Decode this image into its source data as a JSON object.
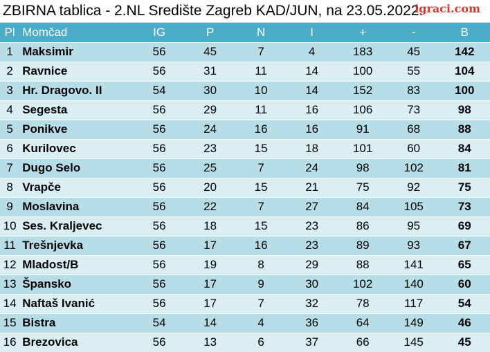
{
  "header": {
    "title": "ZBIRNA tablica - 2.NL Središte Zagreb KAD/JUN, na 23.05.2022.",
    "logo": "igraci.com"
  },
  "table": {
    "columns": [
      "Pl",
      "Momčad",
      "IG",
      "P",
      "N",
      "I",
      "+",
      "-",
      "B"
    ],
    "rows": [
      [
        "1",
        "Maksimir",
        "56",
        "45",
        "7",
        "4",
        "183",
        "45",
        "142"
      ],
      [
        "2",
        "Ravnice",
        "56",
        "31",
        "11",
        "14",
        "100",
        "55",
        "104"
      ],
      [
        "3",
        "Hr. Dragovo. II",
        "54",
        "30",
        "10",
        "14",
        "152",
        "83",
        "100"
      ],
      [
        "4",
        "Segesta",
        "56",
        "29",
        "11",
        "16",
        "106",
        "73",
        "98"
      ],
      [
        "5",
        "Ponikve",
        "56",
        "24",
        "16",
        "16",
        "91",
        "68",
        "88"
      ],
      [
        "6",
        "Kurilovec",
        "56",
        "23",
        "15",
        "18",
        "101",
        "60",
        "84"
      ],
      [
        "7",
        "Dugo Selo",
        "56",
        "25",
        "7",
        "24",
        "98",
        "102",
        "81"
      ],
      [
        "8",
        "Vrapče",
        "56",
        "20",
        "15",
        "21",
        "75",
        "92",
        "75"
      ],
      [
        "9",
        "Moslavina",
        "56",
        "22",
        "7",
        "27",
        "84",
        "105",
        "73"
      ],
      [
        "10",
        "Ses. Kraljevec",
        "56",
        "18",
        "15",
        "23",
        "86",
        "95",
        "69"
      ],
      [
        "11",
        "Trešnjevka",
        "56",
        "17",
        "16",
        "23",
        "89",
        "93",
        "67"
      ],
      [
        "12",
        "Mladost/B",
        "56",
        "19",
        "8",
        "29",
        "88",
        "141",
        "65"
      ],
      [
        "13",
        "Špansko",
        "56",
        "17",
        "9",
        "30",
        "102",
        "140",
        "60"
      ],
      [
        "14",
        "Naftaš Ivanić",
        "56",
        "17",
        "7",
        "32",
        "78",
        "117",
        "54"
      ],
      [
        "15",
        "Bistra",
        "54",
        "14",
        "4",
        "36",
        "64",
        "149",
        "46"
      ],
      [
        "16",
        "Brezovica",
        "56",
        "13",
        "6",
        "37",
        "66",
        "145",
        "45"
      ]
    ]
  },
  "colors": {
    "header_bg": "#4aacc6",
    "row_odd": "#b7dee8",
    "row_even": "#daeef3",
    "logo": "#d93a2f"
  }
}
